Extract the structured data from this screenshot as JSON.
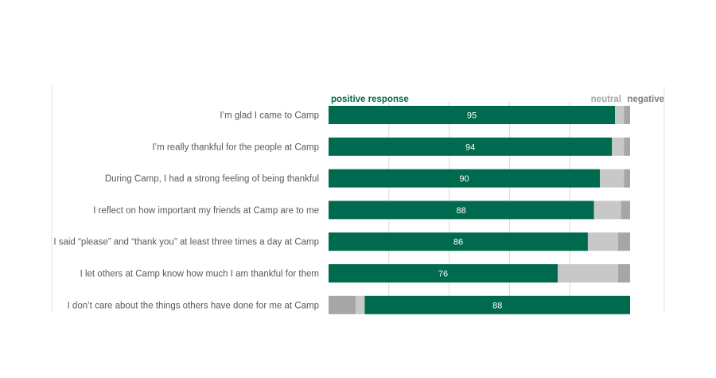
{
  "chart_data": {
    "type": "bar",
    "orientation": "horizontal",
    "stacked": true,
    "xlim": [
      0,
      100
    ],
    "grid": true,
    "legend": {
      "placement": "top",
      "positive": "positive response",
      "neutral": "neutral",
      "negative": "negative"
    },
    "colors": {
      "positive": "#006a4e",
      "neutral": "#c8c8c8",
      "negative": "#a6a6a6",
      "gridline": "#d9d9d9",
      "label": "#595959"
    },
    "categories": [
      "I’m glad I came to Camp",
      "I’m really thankful for the people at Camp",
      "During Camp, I had a strong feeling of being thankful",
      "I reflect on how important my friends at Camp are to me",
      "I said “please” and “thank you” at least three times a day at Camp",
      "I let others at Camp know how much I am thankful for them",
      "I don’t care about the things others have done for me at Camp"
    ],
    "series": [
      {
        "name": "positive response",
        "values": [
          95,
          94,
          90,
          88,
          86,
          76,
          88
        ]
      },
      {
        "name": "neutral",
        "values": [
          3,
          4,
          8,
          9,
          10,
          20,
          3
        ]
      },
      {
        "name": "negative",
        "values": [
          2,
          2,
          2,
          3,
          4,
          4,
          9
        ]
      }
    ],
    "reversed": [
      false,
      false,
      false,
      false,
      false,
      false,
      true
    ]
  }
}
